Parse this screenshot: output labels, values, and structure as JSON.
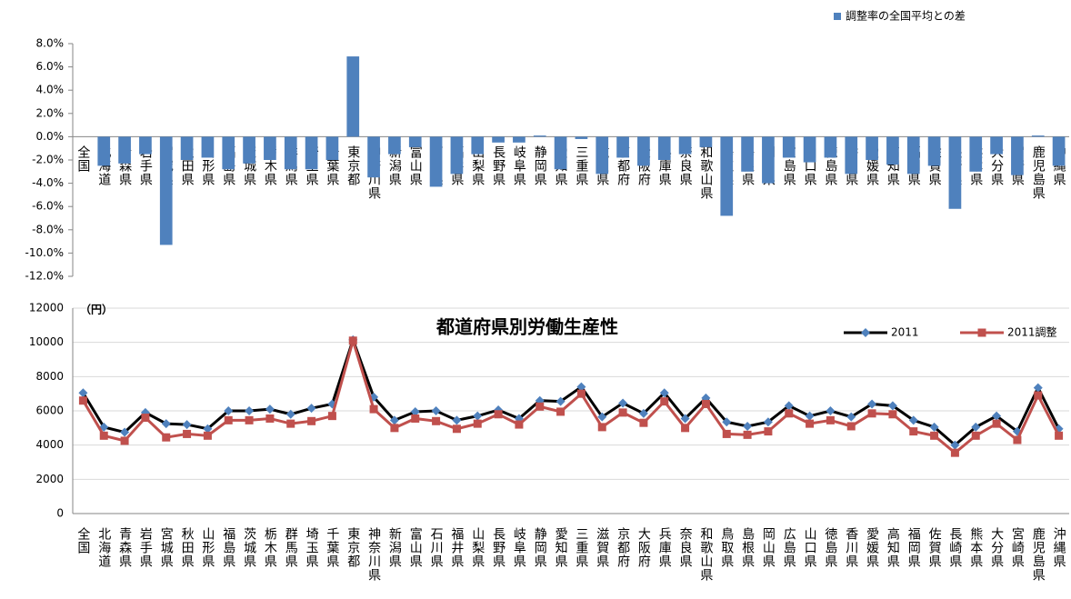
{
  "chart_data": [
    {
      "type": "bar",
      "legend": "top right",
      "grid": false,
      "series": [
        {
          "name": "調整率の全国平均との差",
          "color": "#4f81bd",
          "values": [
            0,
            -2.5,
            -2.3,
            -1.5,
            -9.3,
            -2.0,
            -1.8,
            -2.8,
            -2.3,
            -2.0,
            -2.8,
            -2.8,
            -2.0,
            6.9,
            -3.5,
            -1.5,
            -0.9,
            -4.3,
            -3.2,
            -1.5,
            -0.5,
            -0.5,
            0.1,
            -2.8,
            -0.2,
            -3.2,
            -1.8,
            -2.5,
            -2.0,
            -1.5,
            -0.9,
            -6.8,
            -3.0,
            -4.0,
            -1.8,
            -2.2,
            -1.8,
            -3.2,
            -2.0,
            -2.4,
            -3.2,
            -2.5,
            -6.2,
            -3.0,
            -1.5,
            -3.3,
            0.1,
            -2.5
          ]
        }
      ],
      "categories": [
        "全国",
        "北海道",
        "青森県",
        "岩手県",
        "宮城県",
        "秋田県",
        "山形県",
        "福島県",
        "茨城県",
        "栃木県",
        "群馬県",
        "埼玉県",
        "千葉県",
        "東京都",
        "神奈川県",
        "新潟県",
        "富山県",
        "石川県",
        "福井県",
        "山梨県",
        "長野県",
        "岐阜県",
        "静岡県",
        "愛知県",
        "三重県",
        "滋賀県",
        "京都府",
        "大阪府",
        "兵庫県",
        "奈良県",
        "和歌山県",
        "鳥取県",
        "島根県",
        "岡山県",
        "広島県",
        "山口県",
        "徳島県",
        "香川県",
        "愛媛県",
        "高知県",
        "福岡県",
        "佐賀県",
        "長崎県",
        "熊本県",
        "大分県",
        "宮崎県",
        "鹿児島県",
        "沖縄県"
      ],
      "ylim": [
        -12,
        8
      ],
      "yticks": [
        {
          "value": -12,
          "label": "-12.0%"
        },
        {
          "value": -10,
          "label": "-10.0%"
        },
        {
          "value": -8,
          "label": "-8.0%"
        },
        {
          "value": -6,
          "label": "-6.0%"
        },
        {
          "value": -4,
          "label": "-4.0%"
        },
        {
          "value": -2,
          "label": "-2.0%"
        },
        {
          "value": 0,
          "label": "0.0%"
        },
        {
          "value": 2,
          "label": "2.0%"
        },
        {
          "value": 4,
          "label": "4.0%"
        },
        {
          "value": 6,
          "label": "6.0%"
        },
        {
          "value": 8,
          "label": "8.0%"
        }
      ]
    },
    {
      "type": "line",
      "title": "都道府県別労働生産性",
      "y_label": "（円）",
      "legend": "top right",
      "grid": true,
      "categories": [
        "全国",
        "北海道",
        "青森県",
        "岩手県",
        "宮城県",
        "秋田県",
        "山形県",
        "福島県",
        "茨城県",
        "栃木県",
        "群馬県",
        "埼玉県",
        "千葉県",
        "東京都",
        "神奈川県",
        "新潟県",
        "富山県",
        "石川県",
        "福井県",
        "山梨県",
        "長野県",
        "岐阜県",
        "静岡県",
        "愛知県",
        "三重県",
        "滋賀県",
        "京都府",
        "大阪府",
        "兵庫県",
        "奈良県",
        "和歌山県",
        "鳥取県",
        "島根県",
        "岡山県",
        "広島県",
        "山口県",
        "徳島県",
        "香川県",
        "愛媛県",
        "高知県",
        "福岡県",
        "佐賀県",
        "長崎県",
        "熊本県",
        "大分県",
        "宮崎県",
        "鹿児島県",
        "沖縄県"
      ],
      "series": [
        {
          "name": "2011",
          "color": "#000000",
          "marker_color": "#4f81bd",
          "marker": "diamond",
          "values": [
            7050,
            5050,
            4750,
            5900,
            5250,
            5200,
            4950,
            6000,
            6000,
            6100,
            5800,
            6150,
            6400,
            10150,
            6800,
            5450,
            5950,
            6000,
            5450,
            5700,
            6050,
            5550,
            6600,
            6550,
            7400,
            5650,
            6450,
            5850,
            7050,
            5550,
            6750,
            5350,
            5100,
            5350,
            6300,
            5700,
            6000,
            5650,
            6400,
            6300,
            5450,
            5050,
            4000,
            5050,
            5700,
            4800,
            7350,
            4950
          ]
        },
        {
          "name": "2011調整",
          "color": "#c0504d",
          "marker_color": "#c0504d",
          "marker": "square",
          "values": [
            6600,
            4550,
            4250,
            5600,
            4450,
            4650,
            4550,
            5450,
            5450,
            5550,
            5250,
            5400,
            5700,
            10100,
            6100,
            5000,
            5550,
            5400,
            4950,
            5250,
            5800,
            5200,
            6250,
            5950,
            7000,
            5050,
            5900,
            5300,
            6550,
            5000,
            6400,
            4650,
            4600,
            4800,
            5850,
            5250,
            5450,
            5100,
            5850,
            5800,
            4800,
            4550,
            3550,
            4550,
            5250,
            4300,
            6900,
            4550
          ]
        }
      ],
      "ylim": [
        0,
        12000
      ],
      "yticks": [
        0,
        2000,
        4000,
        6000,
        8000,
        10000,
        12000
      ]
    }
  ]
}
